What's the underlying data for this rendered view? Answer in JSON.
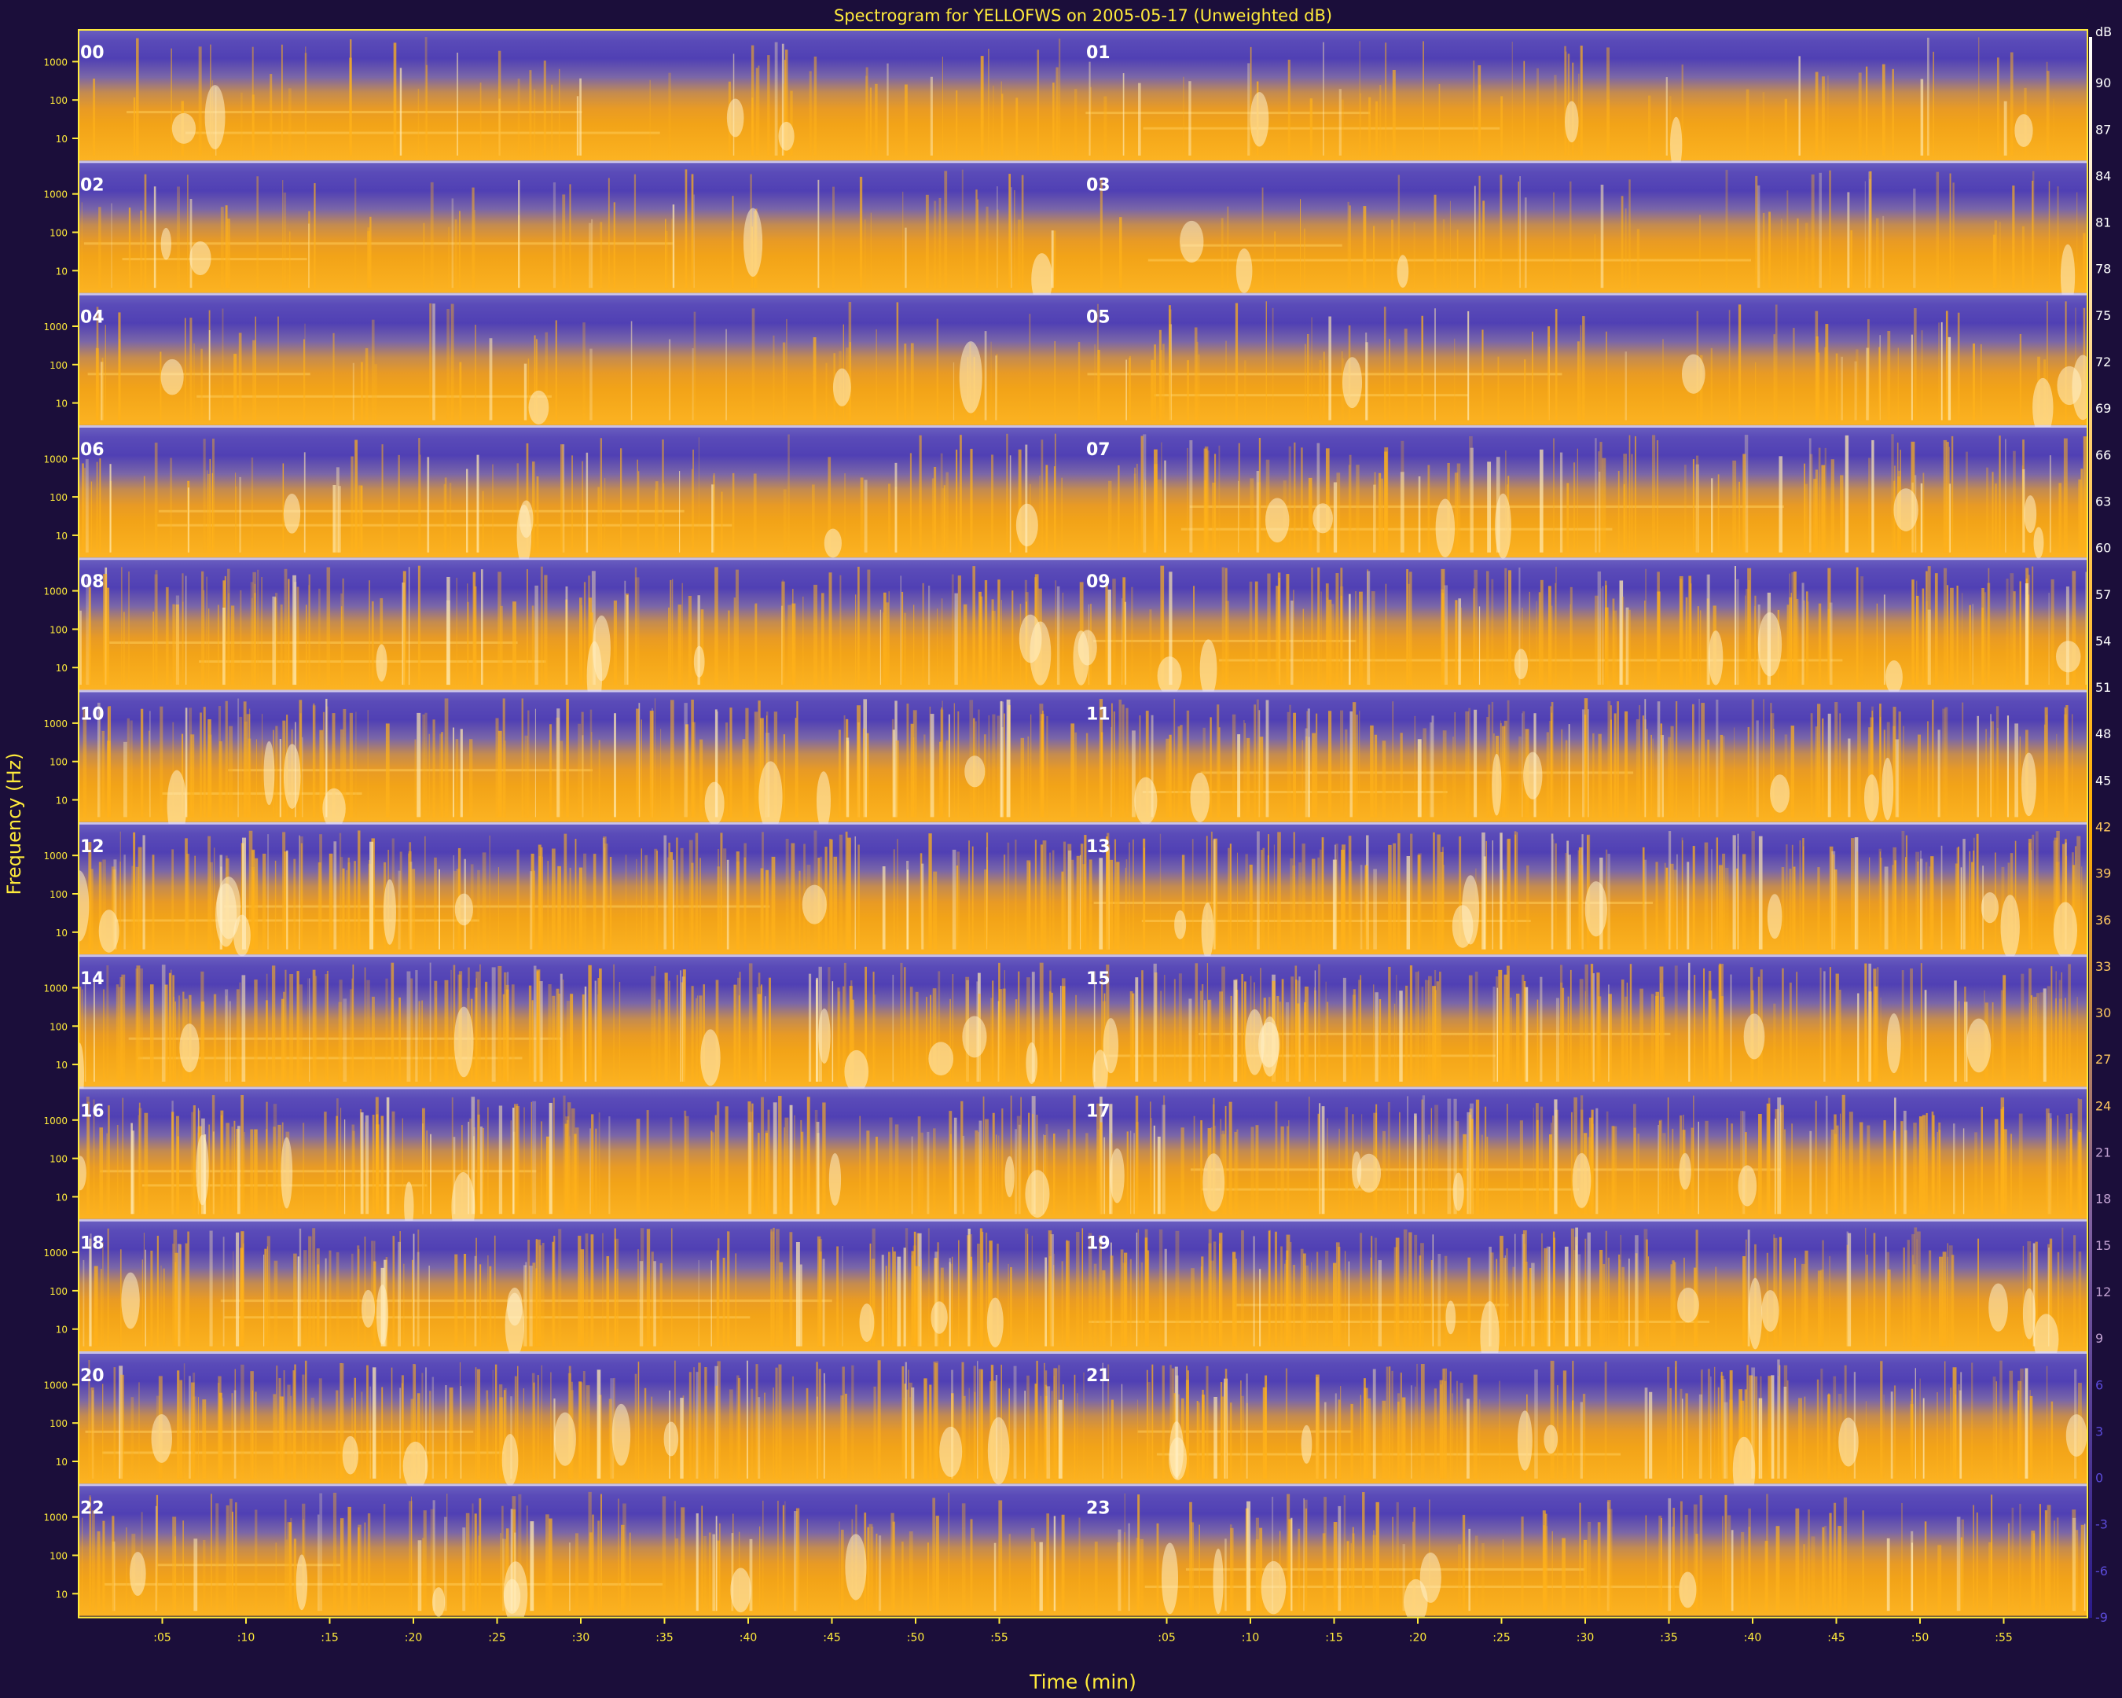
{
  "colors": {
    "background": "#1b0e3a",
    "low": "#4a3aa8",
    "high": "#ffae00",
    "peak": "#ffefc0",
    "label_yellow": "#ffeb3b"
  },
  "chart_data": {
    "type": "heatmap",
    "title": "Spectrogram for YELLOFWS on 2005-05-17 (Unweighted dB)",
    "xlabel": "Time (min)",
    "ylabel": "Frequency (Hz)",
    "x_ticks": [
      ":05",
      ":10",
      ":15",
      ":20",
      ":25",
      ":30",
      ":35",
      ":40",
      ":45",
      ":50",
      ":55"
    ],
    "y_ticks": [
      "1000",
      "100",
      "10"
    ],
    "hour_labels": [
      "00",
      "01",
      "02",
      "03",
      "04",
      "05",
      "06",
      "07",
      "08",
      "09",
      "10",
      "11",
      "12",
      "13",
      "14",
      "15",
      "16",
      "17",
      "18",
      "19",
      "20",
      "21",
      "22",
      "23"
    ],
    "colorbar": {
      "unit": "dB",
      "ticks": [
        90,
        87,
        84,
        81,
        78,
        75,
        72,
        69,
        66,
        63,
        60,
        57,
        54,
        51,
        48,
        45,
        42,
        39,
        36,
        33,
        30,
        27,
        24,
        21,
        18,
        15,
        12,
        9,
        6,
        3,
        0,
        -3,
        -6,
        -9
      ],
      "range": [
        -9,
        93
      ]
    },
    "hour_activity": [
      0.15,
      0.12,
      0.18,
      0.14,
      0.17,
      0.25,
      0.3,
      0.45,
      0.55,
      0.6,
      0.62,
      0.65,
      0.68,
      0.7,
      0.72,
      0.68,
      0.66,
      0.65,
      0.67,
      0.63,
      0.7,
      0.6,
      0.45,
      0.42
    ]
  }
}
